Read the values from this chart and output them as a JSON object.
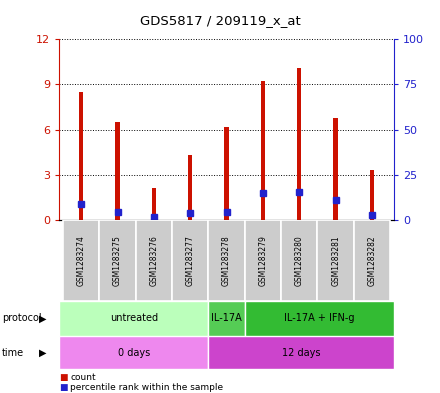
{
  "title": "GDS5817 / 209119_x_at",
  "samples": [
    "GSM1283274",
    "GSM1283275",
    "GSM1283276",
    "GSM1283277",
    "GSM1283278",
    "GSM1283279",
    "GSM1283280",
    "GSM1283281",
    "GSM1283282"
  ],
  "count_values": [
    8.5,
    6.5,
    2.1,
    4.3,
    6.2,
    9.2,
    10.1,
    6.8,
    3.3
  ],
  "percentile_left_axis": [
    1.1,
    0.55,
    0.18,
    0.5,
    0.55,
    1.8,
    1.85,
    1.35,
    0.35
  ],
  "ylim_left": [
    0,
    12
  ],
  "ylim_right": [
    0,
    100
  ],
  "yticks_left": [
    0,
    3,
    6,
    9,
    12
  ],
  "yticks_right": [
    0,
    25,
    50,
    75,
    100
  ],
  "bar_color": "#cc1100",
  "percentile_color": "#2222cc",
  "protocol_groups": [
    {
      "start": 0,
      "end": 4,
      "color": "#bbffbb",
      "label": "untreated"
    },
    {
      "start": 4,
      "end": 5,
      "color": "#55cc55",
      "label": "IL-17A"
    },
    {
      "start": 5,
      "end": 9,
      "color": "#33bb33",
      "label": "IL-17A + IFN-g"
    }
  ],
  "time_groups": [
    {
      "start": 0,
      "end": 4,
      "color": "#ee88ee",
      "label": "0 days"
    },
    {
      "start": 4,
      "end": 9,
      "color": "#cc44cc",
      "label": "12 days"
    }
  ],
  "sample_bg_color": "#cccccc",
  "bar_width": 0.12
}
